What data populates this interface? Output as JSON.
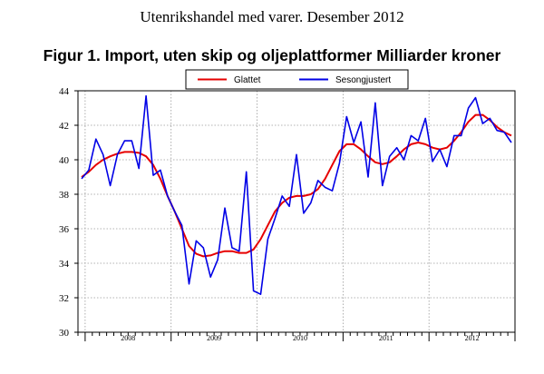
{
  "page": {
    "title": "Utenrikshandel med varer. Desember 2012"
  },
  "chart_data": {
    "type": "line",
    "title": "Figur 1. Import, uten skip og oljeplattformer Milliarder kroner",
    "xlabel": "",
    "ylabel": "",
    "ylim": [
      30,
      44
    ],
    "yticks": [
      "30",
      "32",
      "34",
      "36",
      "38",
      "40",
      "42",
      "44"
    ],
    "year_labels": [
      "2008",
      "2009",
      "2010",
      "2011",
      "2012"
    ],
    "grid": true,
    "legend_position": "top",
    "series": [
      {
        "name": "Glattet",
        "color": "#e60000",
        "values": [
          39.0,
          39.3,
          39.7,
          40.0,
          40.2,
          40.35,
          40.45,
          40.45,
          40.4,
          40.2,
          39.7,
          38.9,
          37.9,
          37.0,
          36.0,
          35.0,
          34.55,
          34.4,
          34.45,
          34.6,
          34.7,
          34.7,
          34.6,
          34.6,
          34.8,
          35.4,
          36.2,
          37.0,
          37.5,
          37.8,
          37.9,
          37.9,
          38.0,
          38.3,
          38.9,
          39.7,
          40.5,
          40.9,
          40.9,
          40.6,
          40.2,
          39.85,
          39.75,
          39.85,
          40.2,
          40.6,
          40.9,
          41.0,
          40.9,
          40.7,
          40.6,
          40.7,
          41.1,
          41.6,
          42.2,
          42.6,
          42.6,
          42.3,
          41.9,
          41.6,
          41.4
        ]
      },
      {
        "name": "Sesongjustert",
        "color": "#0000e6",
        "values": [
          38.9,
          39.4,
          41.2,
          40.3,
          38.5,
          40.3,
          41.1,
          41.1,
          39.5,
          43.7,
          39.1,
          39.4,
          37.9,
          37.0,
          36.2,
          32.8,
          35.3,
          34.9,
          33.2,
          34.2,
          37.2,
          34.9,
          34.7,
          39.3,
          32.4,
          32.2,
          35.4,
          36.6,
          37.9,
          37.3,
          40.3,
          36.9,
          37.5,
          38.8,
          38.4,
          38.2,
          39.8,
          42.5,
          41.0,
          42.2,
          39.0,
          43.3,
          38.5,
          40.2,
          40.7,
          40.0,
          41.4,
          41.1,
          42.4,
          39.9,
          40.6,
          39.6,
          41.4,
          41.4,
          43.0,
          43.6,
          42.1,
          42.4,
          41.7,
          41.6,
          41.0
        ]
      }
    ]
  }
}
